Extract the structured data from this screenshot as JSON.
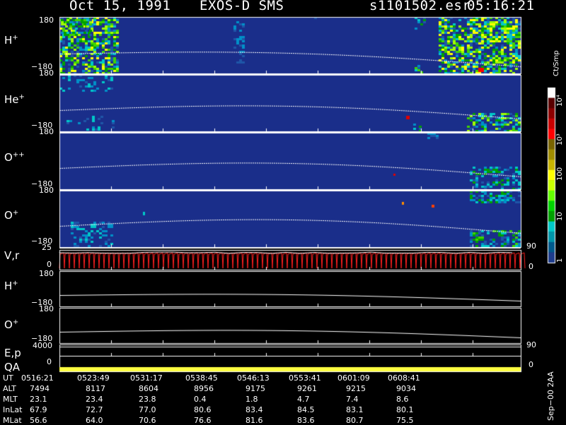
{
  "header": {
    "date": "Oct 15, 1991",
    "instrument": "EXOS-D SMS",
    "file": "s1101502.esr",
    "time": "05:16:21"
  },
  "panels": [
    {
      "label": "H",
      "charge": "+",
      "ymax": "180",
      "ymin": "−180"
    },
    {
      "label": "He",
      "charge": "+",
      "ymax": "180",
      "ymin": "−180"
    },
    {
      "label": "O",
      "charge": "++",
      "ymax": "180",
      "ymin": "−180"
    },
    {
      "label": "O",
      "charge": "+",
      "ymax": "180",
      "ymin": "−180"
    },
    {
      "label": "V,r",
      "ymax": "25",
      "ymin": "0",
      "right_tick": "90",
      "right_zero": "0"
    },
    {
      "label": "H",
      "charge": "+",
      "ymax": "180",
      "ymin": "−180"
    },
    {
      "label": "O",
      "charge": "+",
      "ymax": "180",
      "ymin": "−180"
    },
    {
      "label": "E,p",
      "ymax": "4000",
      "right_tick": "90"
    },
    {
      "label": "QA",
      "ymin": "0",
      "right_zero": "0"
    }
  ],
  "colorbar": {
    "title": "Ct/Smp",
    "labels": [
      "10⁴",
      "10³",
      "100",
      "10",
      "1"
    ],
    "colors": [
      "#ffffff",
      "#5a0000",
      "#8c0000",
      "#c80000",
      "#ff0000",
      "#7a6400",
      "#a08c00",
      "#c8b400",
      "#ffff00",
      "#c8ff00",
      "#64ff00",
      "#00d200",
      "#00a000",
      "#00c8c8",
      "#0096aa",
      "#005a8c",
      "#1e3c8c"
    ]
  },
  "bottom_table": {
    "rows": [
      {
        "label": "UT",
        "values": [
          "0516:21",
          "0523:49",
          "0531:17",
          "0538:45",
          "0546:13",
          "0553:41",
          "0601:09",
          "0608:41"
        ]
      },
      {
        "label": "ALT",
        "values": [
          "7494",
          "8117",
          "8604",
          "8956",
          "9175",
          "9261",
          "9215",
          "9034"
        ]
      },
      {
        "label": "MLT",
        "values": [
          "23.1",
          "23.4",
          "23.8",
          "0.4",
          "1.8",
          "4.7",
          "7.4",
          "8.6"
        ]
      },
      {
        "label": "InLat",
        "values": [
          "67.9",
          "72.7",
          "77.0",
          "80.6",
          "83.4",
          "84.5",
          "83.1",
          "80.1"
        ]
      },
      {
        "label": "MLat",
        "values": [
          "56.6",
          "64.0",
          "70.6",
          "76.6",
          "81.6",
          "83.6",
          "80.7",
          "75.5"
        ]
      }
    ]
  },
  "footer_note": "Sep−00 2AA",
  "chart_data": {
    "type": "heatmap",
    "title": "Oct 15, 1991   EXOS-D SMS",
    "x_ticks": [
      "0516:21",
      "0523:49",
      "0531:17",
      "0538:45",
      "0546:13",
      "0553:41",
      "0601:09",
      "0608:41"
    ],
    "ylim": [
      -180,
      180
    ],
    "series": [
      {
        "name": "H+",
        "units": "Ct/Smp"
      },
      {
        "name": "He+",
        "units": "Ct/Smp"
      },
      {
        "name": "O++",
        "units": "Ct/Smp"
      },
      {
        "name": "O+",
        "units": "Ct/Smp"
      }
    ],
    "color_scale": "log",
    "color_range": [
      1,
      10000
    ]
  }
}
